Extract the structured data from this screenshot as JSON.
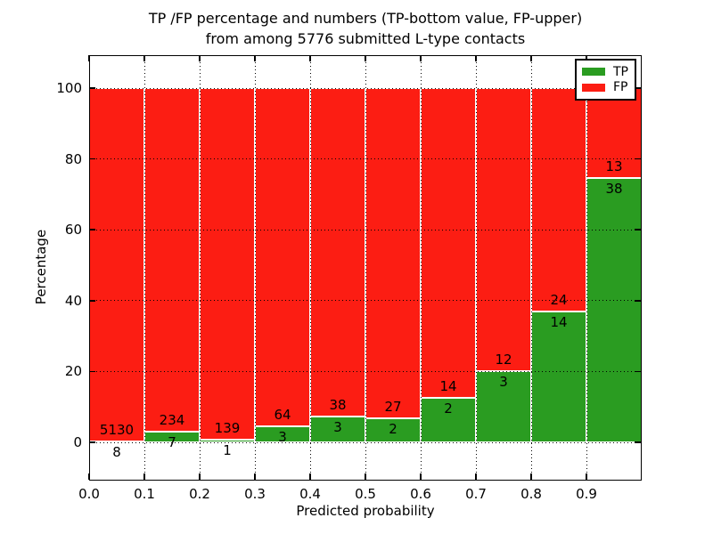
{
  "title": {
    "line1": "TP /FP percentage and numbers (TP-bottom value, FP-upper)",
    "line2": "from among 5776 submitted L-type contacts"
  },
  "axes": {
    "xlabel": "Predicted probability",
    "ylabel": "Percentage",
    "x_tick_labels": [
      "0.0",
      "0.1",
      "0.2",
      "0.3",
      "0.4",
      "0.5",
      "0.6",
      "0.7",
      "0.8",
      "0.9"
    ],
    "y_tick_values": [
      0,
      20,
      40,
      60,
      80,
      100
    ]
  },
  "legend": {
    "position": "upper right",
    "items": [
      {
        "label": "TP",
        "color": "#2a9c21"
      },
      {
        "label": "FP",
        "color": "#fc1d13"
      }
    ]
  },
  "colors": {
    "tp_green": "#2a9c21",
    "fp_red": "#fc1d13",
    "bar_edge": "#ffffff",
    "grid": "#000000",
    "text": "#000000",
    "background": "#ffffff"
  },
  "chart_data": {
    "type": "bar",
    "stacked": true,
    "normalized": "each bin scaled to 100%",
    "title": "TP /FP percentage and numbers (TP-bottom value, FP-upper) from among 5776 submitted L-type contacts",
    "xlabel": "Predicted probability",
    "ylabel": "Percentage",
    "x_tick_labels": [
      "0.0",
      "0.1",
      "0.2",
      "0.3",
      "0.4",
      "0.5",
      "0.6",
      "0.7",
      "0.8",
      "0.9"
    ],
    "y_tick_values": [
      0,
      20,
      40,
      60,
      80,
      100
    ],
    "xlim": [
      0.0,
      1.0
    ],
    "ylim": [
      -10.8,
      109.3
    ],
    "bin_width": 0.1,
    "bins_start": [
      0.0,
      0.1,
      0.2,
      0.3,
      0.4,
      0.5,
      0.6,
      0.7,
      0.8,
      0.9
    ],
    "series": [
      {
        "name": "TP",
        "color": "#2a9c21",
        "counts": [
          8,
          7,
          1,
          3,
          3,
          2,
          2,
          3,
          14,
          38
        ]
      },
      {
        "name": "FP",
        "color": "#fc1d13",
        "counts": [
          5130,
          234,
          139,
          64,
          38,
          27,
          14,
          12,
          24,
          13
        ]
      }
    ],
    "tp_percent_of_bin": [
      0.16,
      2.9,
      0.71,
      4.48,
      7.32,
      6.9,
      12.5,
      20.0,
      36.84,
      74.51
    ],
    "total_contacts": 5776,
    "grid": "dotted",
    "legend_position": "upper right"
  }
}
